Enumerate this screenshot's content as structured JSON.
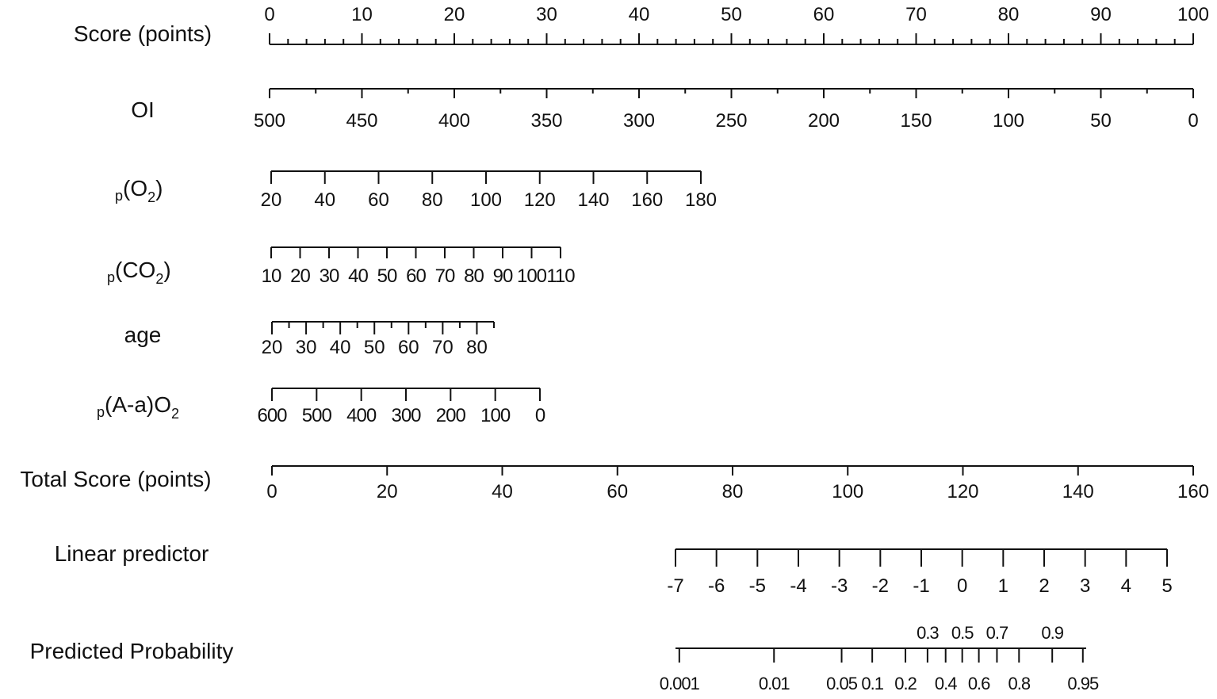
{
  "chart_data": {
    "type": "nomogram",
    "rows": [
      {
        "key": "score",
        "label": "Score (points)",
        "orientation": "up",
        "range": [
          0,
          100
        ],
        "labeled_ticks": [
          0,
          10,
          20,
          30,
          40,
          50,
          60,
          70,
          80,
          90,
          100
        ],
        "minor_ticks": [
          2,
          4,
          6,
          8,
          12,
          14,
          16,
          18,
          22,
          24,
          26,
          28,
          32,
          34,
          36,
          38,
          42,
          44,
          46,
          48,
          52,
          54,
          56,
          58,
          62,
          64,
          66,
          68,
          72,
          74,
          76,
          78,
          82,
          84,
          86,
          88,
          92,
          94,
          96,
          98
        ]
      },
      {
        "key": "oi",
        "label": "OI",
        "orientation": "down",
        "range": [
          500,
          0
        ],
        "labeled_ticks": [
          500,
          450,
          400,
          350,
          300,
          250,
          200,
          150,
          100,
          50,
          0
        ],
        "minor_ticks": [
          475,
          425,
          375,
          325,
          275,
          225,
          175,
          125,
          75,
          25
        ]
      },
      {
        "key": "po2",
        "label_main": "(O",
        "label_prefix": "p",
        "label_sub": "2",
        "label_end": ")",
        "orientation": "down",
        "range": [
          20,
          180
        ],
        "labeled_ticks": [
          20,
          40,
          60,
          80,
          100,
          120,
          140,
          160,
          180
        ],
        "minor_ticks": []
      },
      {
        "key": "pco2",
        "label_main": "(CO",
        "label_prefix": "p",
        "label_sub": "2",
        "label_end": ")",
        "orientation": "down",
        "range": [
          10,
          110
        ],
        "labeled_ticks": [
          10,
          20,
          30,
          40,
          50,
          60,
          70,
          80,
          90,
          100,
          110
        ],
        "minor_ticks": []
      },
      {
        "key": "age",
        "label": "age",
        "orientation": "down",
        "range": [
          20,
          85
        ],
        "labeled_ticks": [
          20,
          30,
          40,
          50,
          60,
          70,
          80
        ],
        "minor_ticks": [
          25,
          35,
          45,
          55,
          65,
          75,
          85
        ]
      },
      {
        "key": "paao2",
        "label_main": "(A-a)O",
        "label_prefix": "p",
        "label_sub": "2",
        "label_end": "",
        "orientation": "down",
        "range": [
          600,
          0
        ],
        "labeled_ticks": [
          600,
          500,
          400,
          300,
          200,
          100,
          0
        ],
        "minor_ticks": []
      },
      {
        "key": "total",
        "label": "Total Score (points)",
        "orientation": "down",
        "range": [
          0,
          160
        ],
        "labeled_ticks": [
          0,
          20,
          40,
          60,
          80,
          100,
          120,
          140,
          160
        ],
        "minor_ticks": []
      },
      {
        "key": "lp",
        "label": "Linear predictor",
        "orientation": "down",
        "range": [
          -7,
          5
        ],
        "labeled_ticks": [
          -7,
          -6,
          -5,
          -4,
          -3,
          -2,
          -1,
          0,
          1,
          2,
          3,
          4,
          5
        ],
        "minor_ticks": []
      },
      {
        "key": "prob",
        "label": "Predicted Probability",
        "orientation": "down",
        "labeled_ticks_below": [
          0.001,
          0.01,
          0.05,
          0.1,
          0.2,
          0.4,
          0.6,
          0.8,
          0.95
        ],
        "labeled_ticks_above": [
          0.3,
          0.5,
          0.7,
          0.9
        ]
      }
    ]
  }
}
